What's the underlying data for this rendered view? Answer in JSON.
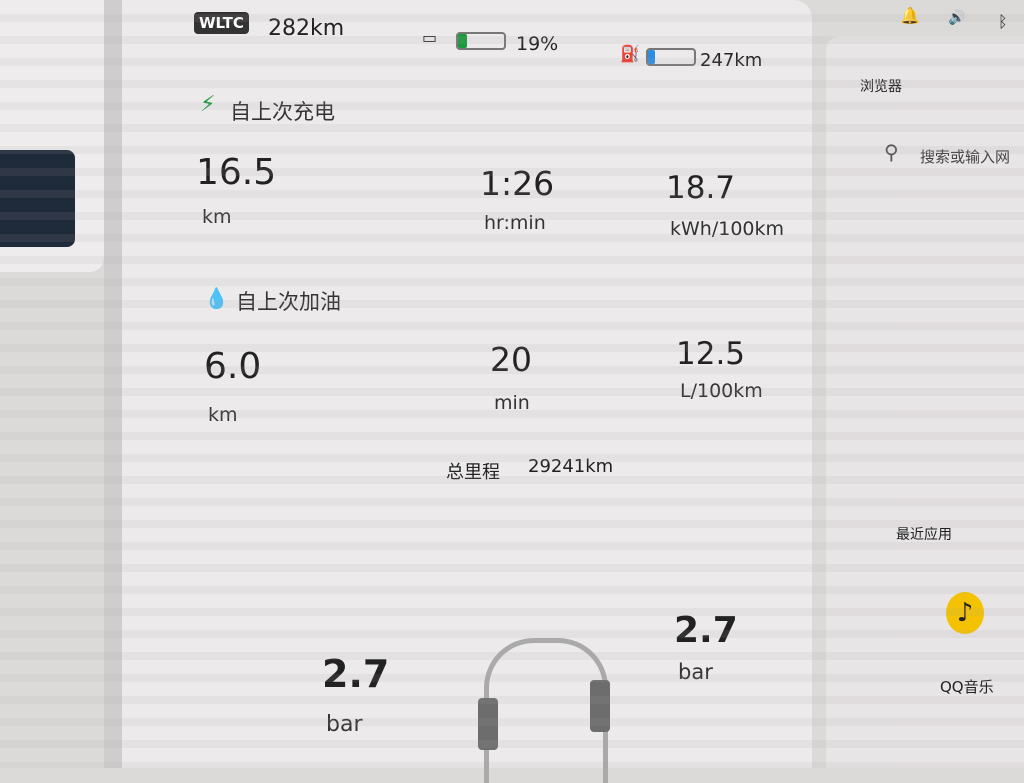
{
  "status": {
    "wltc_badge": "WLTC",
    "wltc_range": "282km",
    "battery_percent": "19%",
    "battery_level": 0.19,
    "fuel_range": "247km",
    "fuel_level": 0.15,
    "battery_color": "#1a9a3a",
    "fuel_color": "#2a8de0"
  },
  "charge": {
    "title": "自上次充电",
    "distance": "16.5",
    "distance_unit": "km",
    "time": "1:26",
    "time_unit": "hr:min",
    "consumption": "18.7",
    "consumption_unit": "kWh/100km"
  },
  "fuel": {
    "title": "自上次加油",
    "distance": "6.0",
    "distance_unit": "km",
    "time": "20",
    "time_unit": "min",
    "consumption": "12.5",
    "consumption_unit": "L/100km"
  },
  "odometer": {
    "label": "总里程",
    "value": "29241km"
  },
  "tires": {
    "front_left": "2.7",
    "front_right": "2.7",
    "unit": "bar"
  },
  "browser": {
    "title": "浏览器",
    "search_placeholder": "搜索或输入网"
  },
  "recent": {
    "title": "最近应用",
    "apps": [
      {
        "label": "QQ音乐"
      }
    ]
  }
}
